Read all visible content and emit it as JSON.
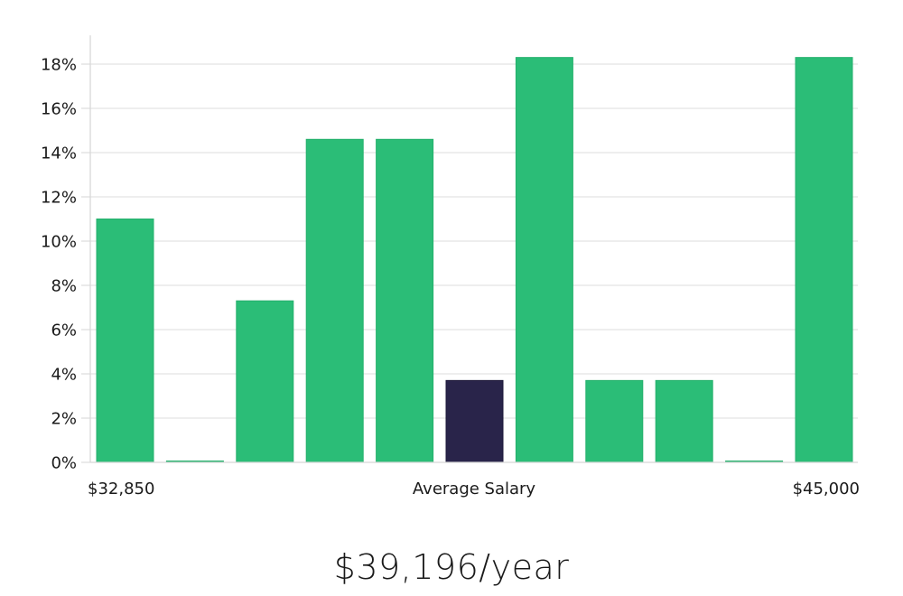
{
  "chart_data": {
    "type": "bar",
    "title": "",
    "xlabel": "Average Salary",
    "ylabel": "",
    "ylim": [
      0,
      19
    ],
    "y_ticks": [
      0,
      2,
      4,
      6,
      8,
      10,
      12,
      14,
      16,
      18
    ],
    "y_tick_suffix": "%",
    "grid": true,
    "x_range_labels": {
      "min": "$32,850",
      "max": "$45,000"
    },
    "values": [
      11.0,
      0.0,
      7.3,
      14.6,
      14.6,
      3.7,
      18.3,
      3.7,
      3.7,
      0.0,
      18.3
    ],
    "highlight_index": 5,
    "colors": {
      "bar": "#2bbd77",
      "highlight": "#29244a",
      "grid": "#e4e4e4",
      "axis": "#d6d6d6"
    }
  },
  "summary": {
    "salary_label": "$39,196/year"
  }
}
